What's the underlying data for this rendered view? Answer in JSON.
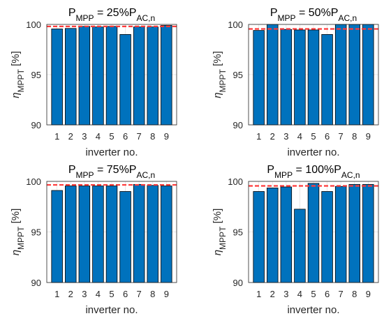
{
  "chart_data": [
    {
      "type": "bar",
      "title": {
        "main": "P",
        "main_sub": "MPP",
        "mid": " = 25%P",
        "tail_sub": "AC,n"
      },
      "categories": [
        "1",
        "2",
        "3",
        "4",
        "5",
        "6",
        "7",
        "8",
        "9"
      ],
      "values": [
        99.55,
        99.6,
        99.8,
        99.75,
        99.8,
        99.0,
        99.75,
        99.75,
        99.9
      ],
      "reference_line": 99.8,
      "xlabel": "inverter no.",
      "ylabel": {
        "sym": "η",
        "sub": "MPPT",
        "unit": "[%]"
      },
      "ylim": [
        90,
        100
      ],
      "yticks": [
        "90",
        "95",
        "100"
      ],
      "grid": true
    },
    {
      "type": "bar",
      "title": {
        "main": "P",
        "main_sub": "MPP",
        "mid": " = 50%P",
        "tail_sub": "AC,n"
      },
      "categories": [
        "1",
        "2",
        "3",
        "4",
        "5",
        "6",
        "7",
        "8",
        "9"
      ],
      "values": [
        99.4,
        100.0,
        99.5,
        99.45,
        99.45,
        99.0,
        100.0,
        100.0,
        100.0
      ],
      "reference_line": 99.55,
      "xlabel": "inverter no.",
      "ylabel": {
        "sym": "η",
        "sub": "MPPT",
        "unit": "[%]"
      },
      "ylim": [
        90,
        100
      ],
      "yticks": [
        "90",
        "95",
        "100"
      ],
      "grid": true
    },
    {
      "type": "bar",
      "title": {
        "main": "P",
        "main_sub": "MPP",
        "mid": " = 75%P",
        "tail_sub": "AC,n"
      },
      "categories": [
        "1",
        "2",
        "3",
        "4",
        "5",
        "6",
        "7",
        "8",
        "9"
      ],
      "values": [
        99.1,
        99.55,
        99.55,
        99.55,
        99.55,
        99.0,
        99.7,
        99.6,
        99.55
      ],
      "reference_line": 99.65,
      "xlabel": "inverter no.",
      "ylabel": {
        "sym": "η",
        "sub": "MPPT",
        "unit": "[%]"
      },
      "ylim": [
        90,
        100
      ],
      "yticks": [
        "90",
        "95",
        "100"
      ],
      "grid": true
    },
    {
      "type": "bar",
      "title": {
        "main": "P",
        "main_sub": "MPP",
        "mid": " = 100%P",
        "tail_sub": "AC,n"
      },
      "categories": [
        "1",
        "2",
        "3",
        "4",
        "5",
        "6",
        "7",
        "8",
        "9"
      ],
      "values": [
        99.0,
        99.35,
        99.45,
        97.25,
        99.8,
        99.0,
        99.5,
        99.7,
        99.7
      ],
      "reference_line": 99.55,
      "xlabel": "inverter no.",
      "ylabel": {
        "sym": "η",
        "sub": "MPPT",
        "unit": "[%]"
      },
      "ylim": [
        90,
        100
      ],
      "yticks": [
        "90",
        "95",
        "100"
      ],
      "grid": true
    }
  ],
  "colors": {
    "bar": "#0072bd",
    "reference": "#ff3b3b"
  }
}
